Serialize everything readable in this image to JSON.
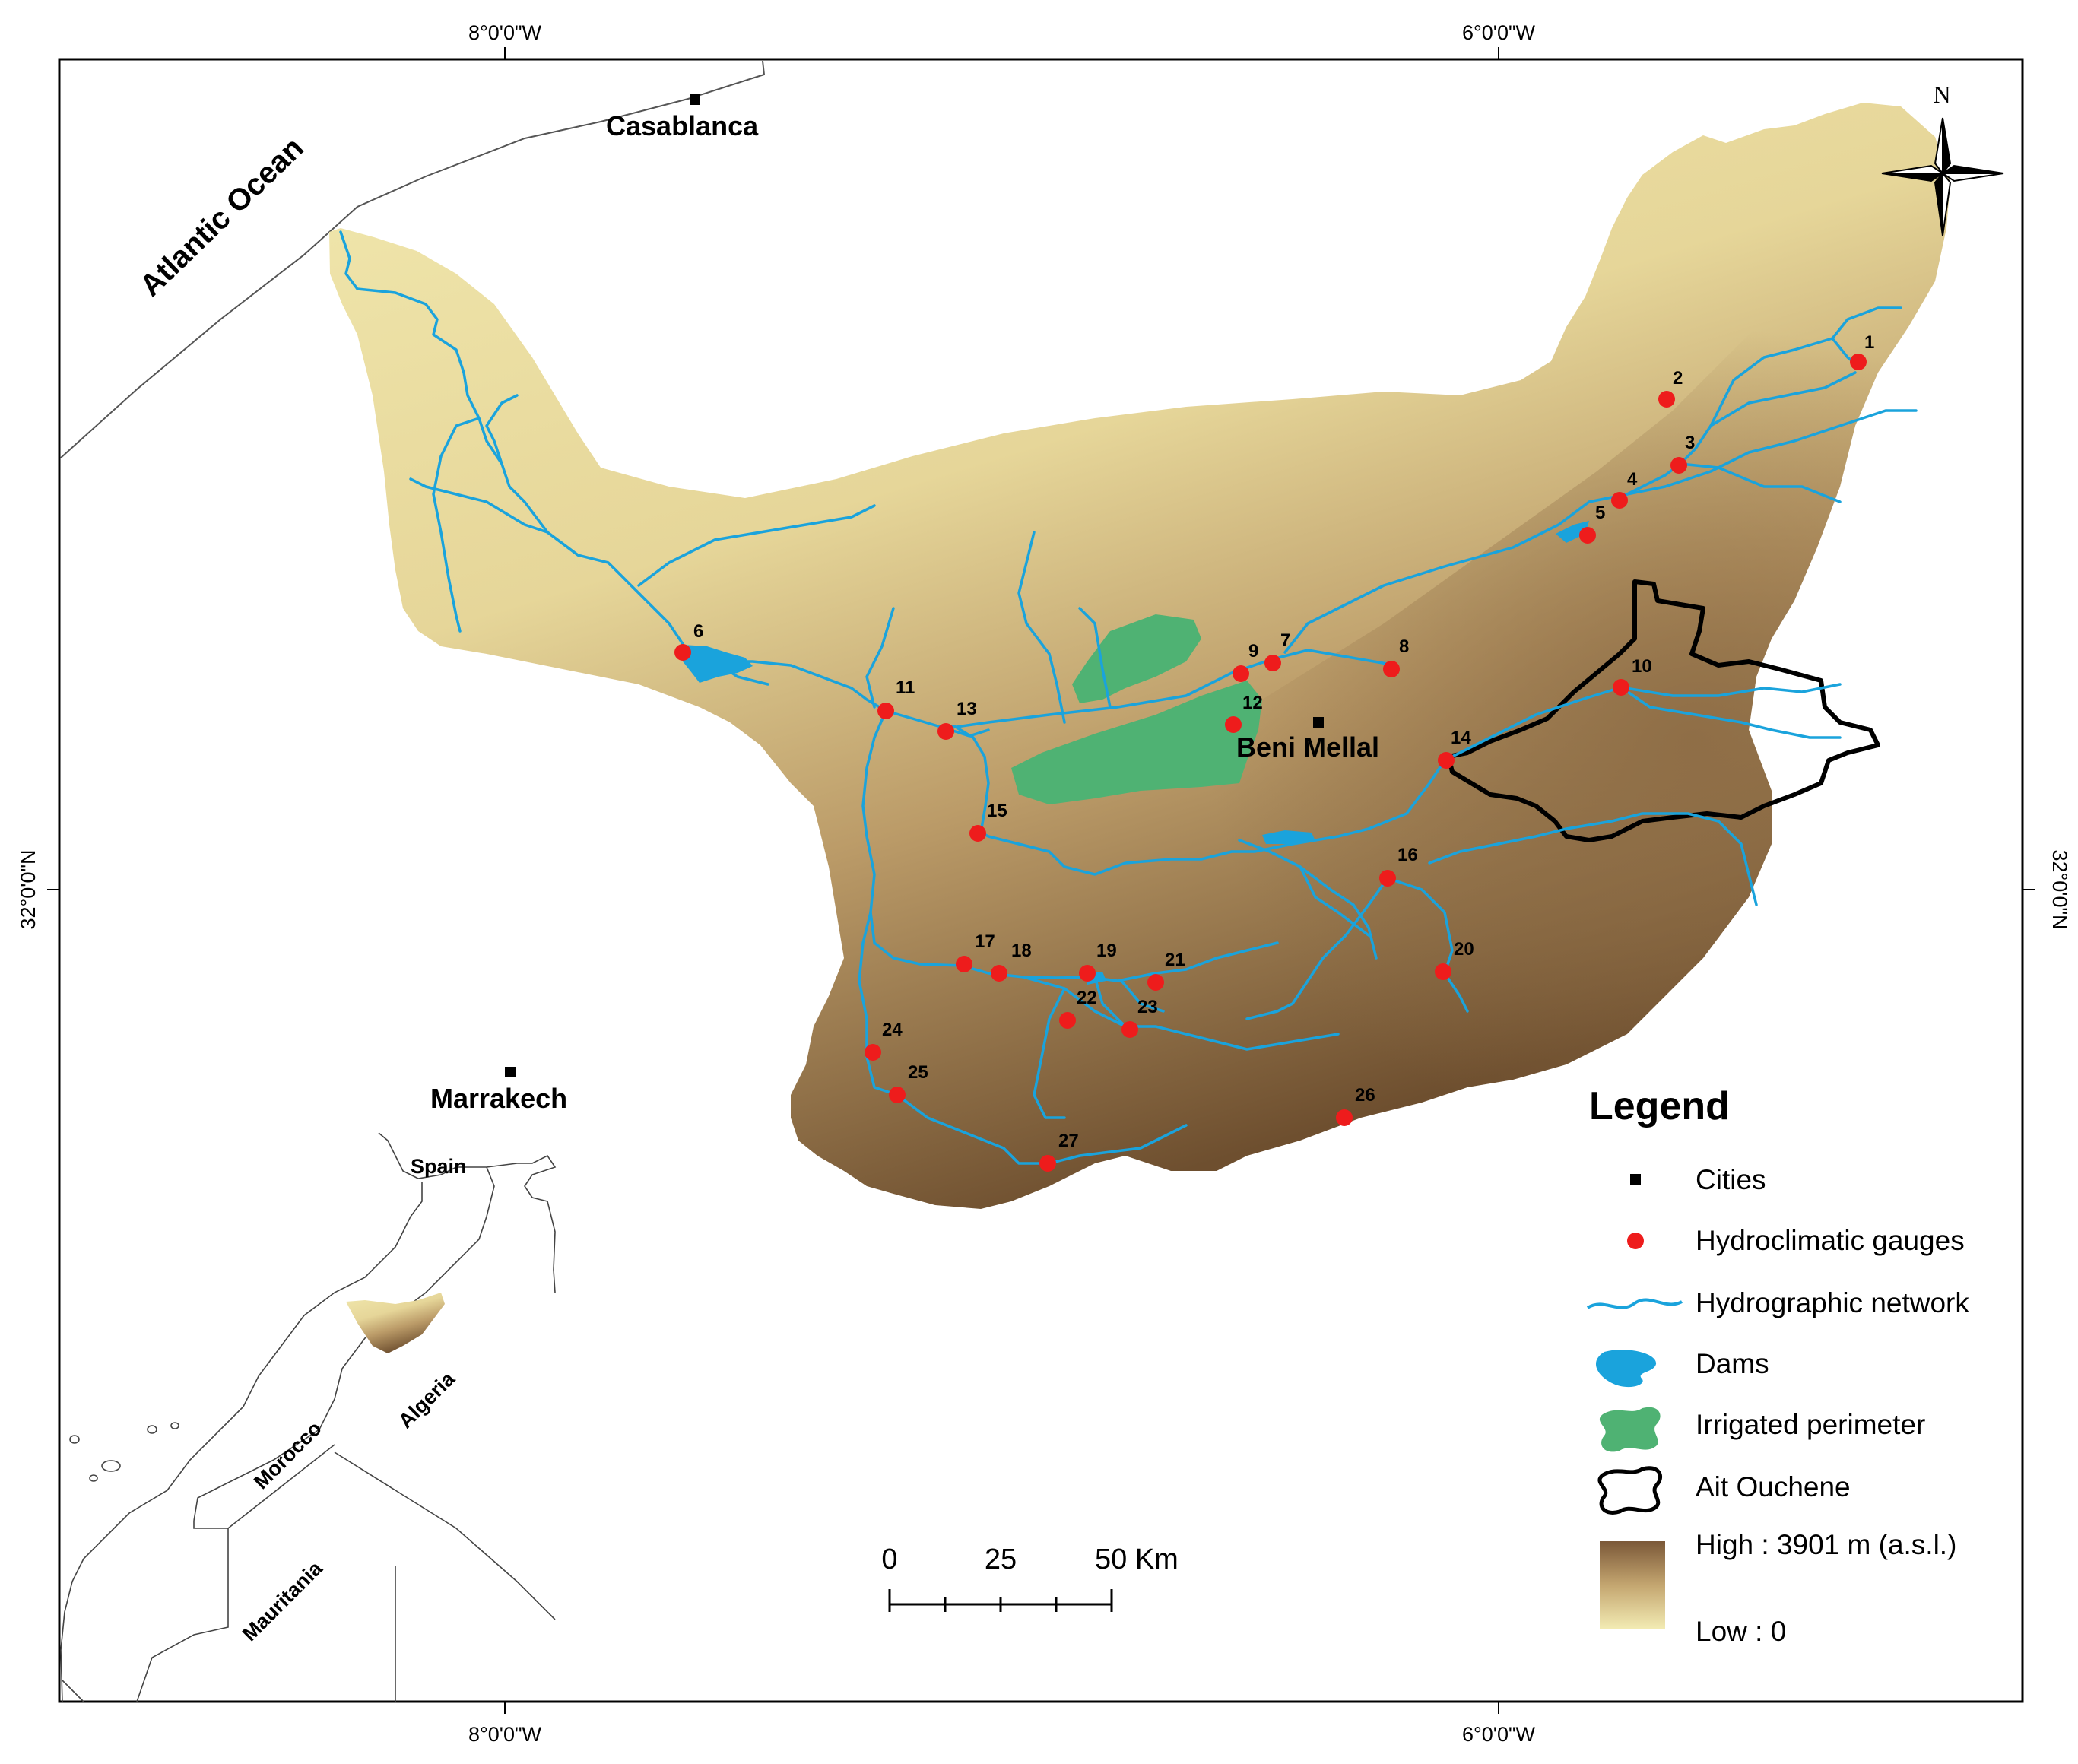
{
  "map": {
    "graticule": {
      "lon_west": "8°0'0\"W",
      "lon_east": "6°0'0\"W",
      "lat": "32°0'0\"N"
    },
    "places": {
      "ocean": "Atlantic Ocean",
      "cities": [
        {
          "id": "casablanca",
          "name": "Casablanca"
        },
        {
          "id": "beni-mellal",
          "name": "Beni Mellal"
        },
        {
          "id": "marrakech",
          "name": "Marrakech"
        }
      ]
    },
    "gauges": [
      "1",
      "2",
      "3",
      "4",
      "5",
      "6",
      "7",
      "8",
      "9",
      "10",
      "11",
      "12",
      "13",
      "14",
      "15",
      "16",
      "17",
      "18",
      "19",
      "20",
      "21",
      "22",
      "23",
      "24",
      "25",
      "26",
      "27"
    ],
    "inset": {
      "countries": [
        "Spain",
        "Morocco",
        "Algeria",
        "Mauritania"
      ]
    },
    "north_arrow": "N",
    "scale_bar": {
      "ticks": [
        "0",
        "25",
        "50 Km"
      ]
    },
    "legend": {
      "title": "Legend",
      "items": {
        "cities": "Cities",
        "gauges": "Hydroclimatic gauges",
        "network": "Hydrographic network",
        "dams": "Dams",
        "irrigated": "Irrigated perimeter",
        "ait_ouchene": "Ait Ouchene"
      },
      "elevation_high": "High : 3901 m (a.s.l.)",
      "elevation_low": "Low : 0"
    },
    "colors": {
      "river": "#1aa3dc",
      "gauge": "#ee1c1c",
      "irrigated": "#4fb273",
      "low_elevation": "#efe7ab",
      "high_elevation": "#6b4a2a"
    }
  }
}
